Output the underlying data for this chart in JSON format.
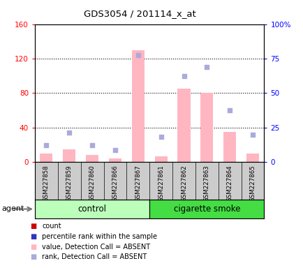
{
  "title": "GDS3054 / 201114_x_at",
  "samples": [
    "GSM227858",
    "GSM227859",
    "GSM227860",
    "GSM227866",
    "GSM227867",
    "GSM227861",
    "GSM227862",
    "GSM227863",
    "GSM227864",
    "GSM227865"
  ],
  "groups": [
    "control",
    "control",
    "control",
    "control",
    "control",
    "cigarette smoke",
    "cigarette smoke",
    "cigarette smoke",
    "cigarette smoke",
    "cigarette smoke"
  ],
  "count_values": [
    10,
    15,
    8,
    4,
    130,
    7,
    85,
    80,
    35,
    10
  ],
  "rank_values": [
    20,
    34,
    20,
    14,
    124,
    29,
    100,
    110,
    60,
    32
  ],
  "ylim_left": [
    0,
    160
  ],
  "ylim_right": [
    0,
    100
  ],
  "yticks_left": [
    0,
    40,
    80,
    120,
    160
  ],
  "ytick_labels_left": [
    "0",
    "40",
    "80",
    "120",
    "160"
  ],
  "yticks_right": [
    0,
    25,
    50,
    75,
    100
  ],
  "ytick_labels_right": [
    "0",
    "25",
    "50",
    "75",
    "100%"
  ],
  "bar_color": "#FFB6C1",
  "rank_color_absent": "#AAAADD",
  "count_marker_color": "#CC0000",
  "rank_marker_color": "#3333BB",
  "control_color_light": "#CCFFCC",
  "control_color_dark": "#44DD44",
  "smoke_color_light": "#44DD44",
  "smoke_color_dark": "#44DD44",
  "col_bg": "#CCCCCC",
  "agent_label": "agent"
}
